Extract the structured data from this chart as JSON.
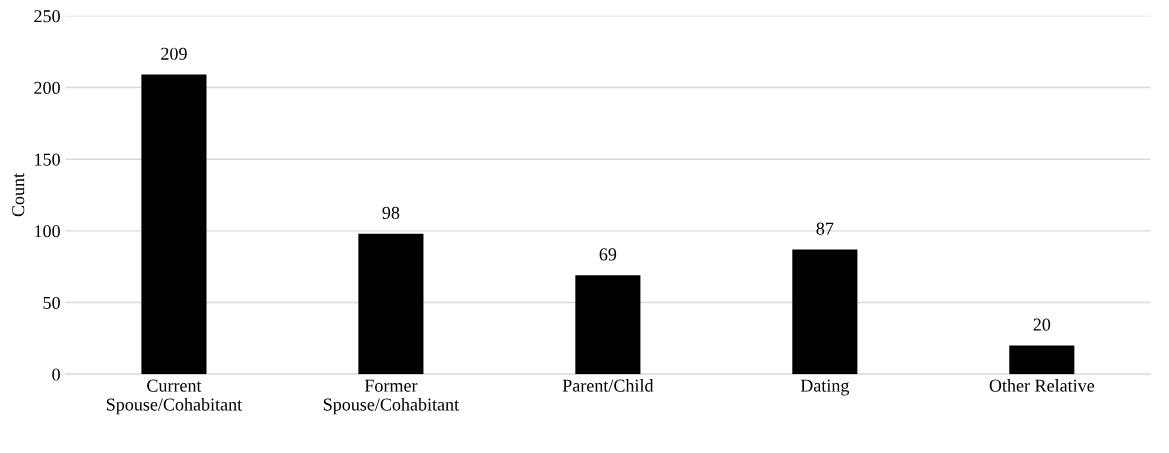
{
  "chart_data": {
    "type": "bar",
    "ylabel": "Count",
    "categories": [
      "Current\nSpouse/Cohabitant",
      "Former\nSpouse/Cohabitant",
      "Parent/Child",
      "Dating",
      "Other Relative"
    ],
    "values": [
      209,
      98,
      69,
      87,
      20
    ],
    "color": "#000000",
    "ylim": [
      0,
      250
    ],
    "yticks": [
      0,
      50,
      100,
      150,
      200,
      250
    ],
    "grid": "y",
    "data_labels": true
  }
}
